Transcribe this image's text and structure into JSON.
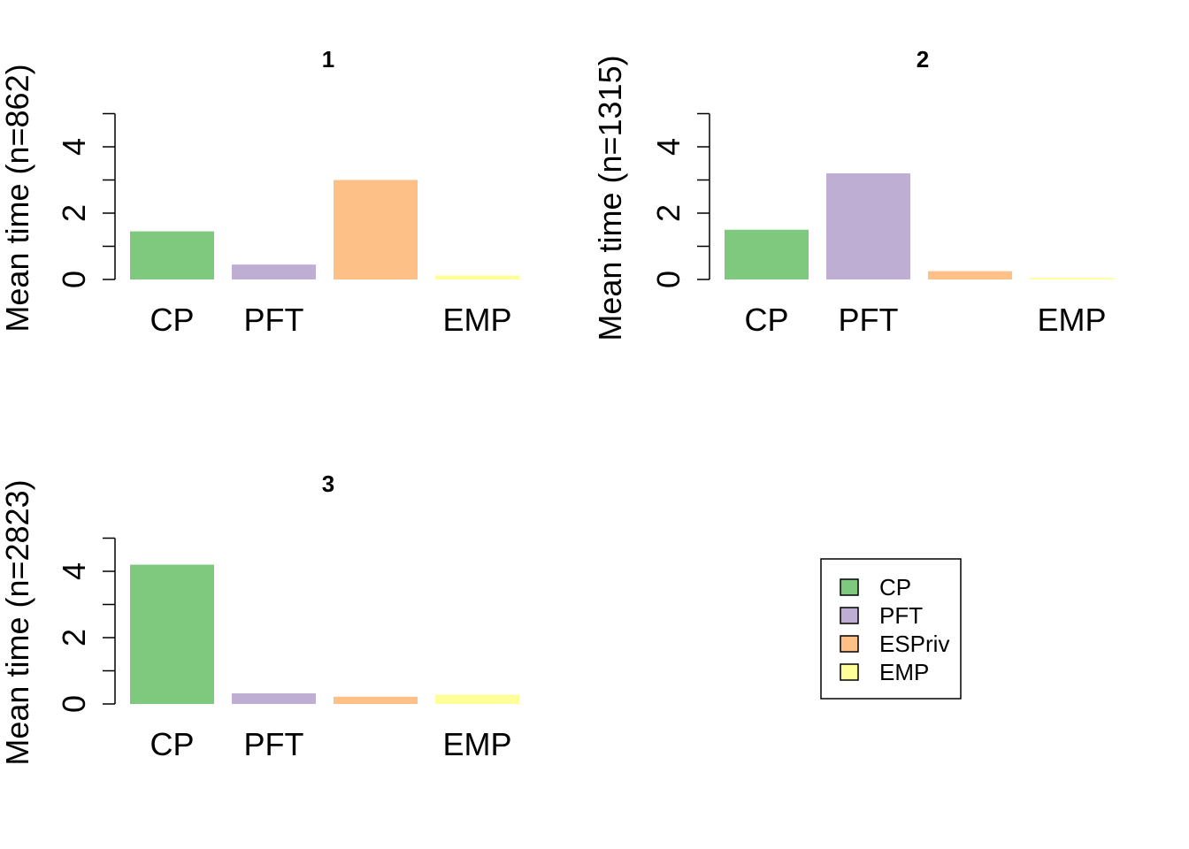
{
  "colors": {
    "CP": "#7fc97f",
    "PFT": "#beaed4",
    "ESPriv": "#fdc086",
    "EMP": "#ffff99"
  },
  "legend": {
    "entries": [
      "CP",
      "PFT",
      "ESPriv",
      "EMP"
    ]
  },
  "chart_data": [
    {
      "type": "bar",
      "title": "1",
      "ylabel": "Mean time (n=862)",
      "categories": [
        "CP",
        "PFT",
        "ESPriv",
        "EMP"
      ],
      "category_labels": [
        "CP",
        "PFT",
        "",
        "EMP"
      ],
      "values": [
        1.45,
        0.45,
        3.0,
        0.12
      ],
      "ylim": [
        0,
        5
      ],
      "yticks": [
        0,
        2,
        4
      ],
      "grid": false
    },
    {
      "type": "bar",
      "title": "2",
      "ylabel": "Mean time (n=1315)",
      "categories": [
        "CP",
        "PFT",
        "ESPriv",
        "EMP"
      ],
      "category_labels": [
        "CP",
        "PFT",
        "",
        "EMP"
      ],
      "values": [
        1.5,
        3.2,
        0.25,
        0.05
      ],
      "ylim": [
        0,
        5
      ],
      "yticks": [
        0,
        2,
        4
      ],
      "grid": false
    },
    {
      "type": "bar",
      "title": "3",
      "ylabel": "Mean time (n=2823)",
      "categories": [
        "CP",
        "PFT",
        "ESPriv",
        "EMP"
      ],
      "category_labels": [
        "CP",
        "PFT",
        "",
        "EMP"
      ],
      "values": [
        4.2,
        0.32,
        0.22,
        0.28
      ],
      "ylim": [
        0,
        5
      ],
      "yticks": [
        0,
        2,
        4
      ],
      "grid": false
    }
  ]
}
